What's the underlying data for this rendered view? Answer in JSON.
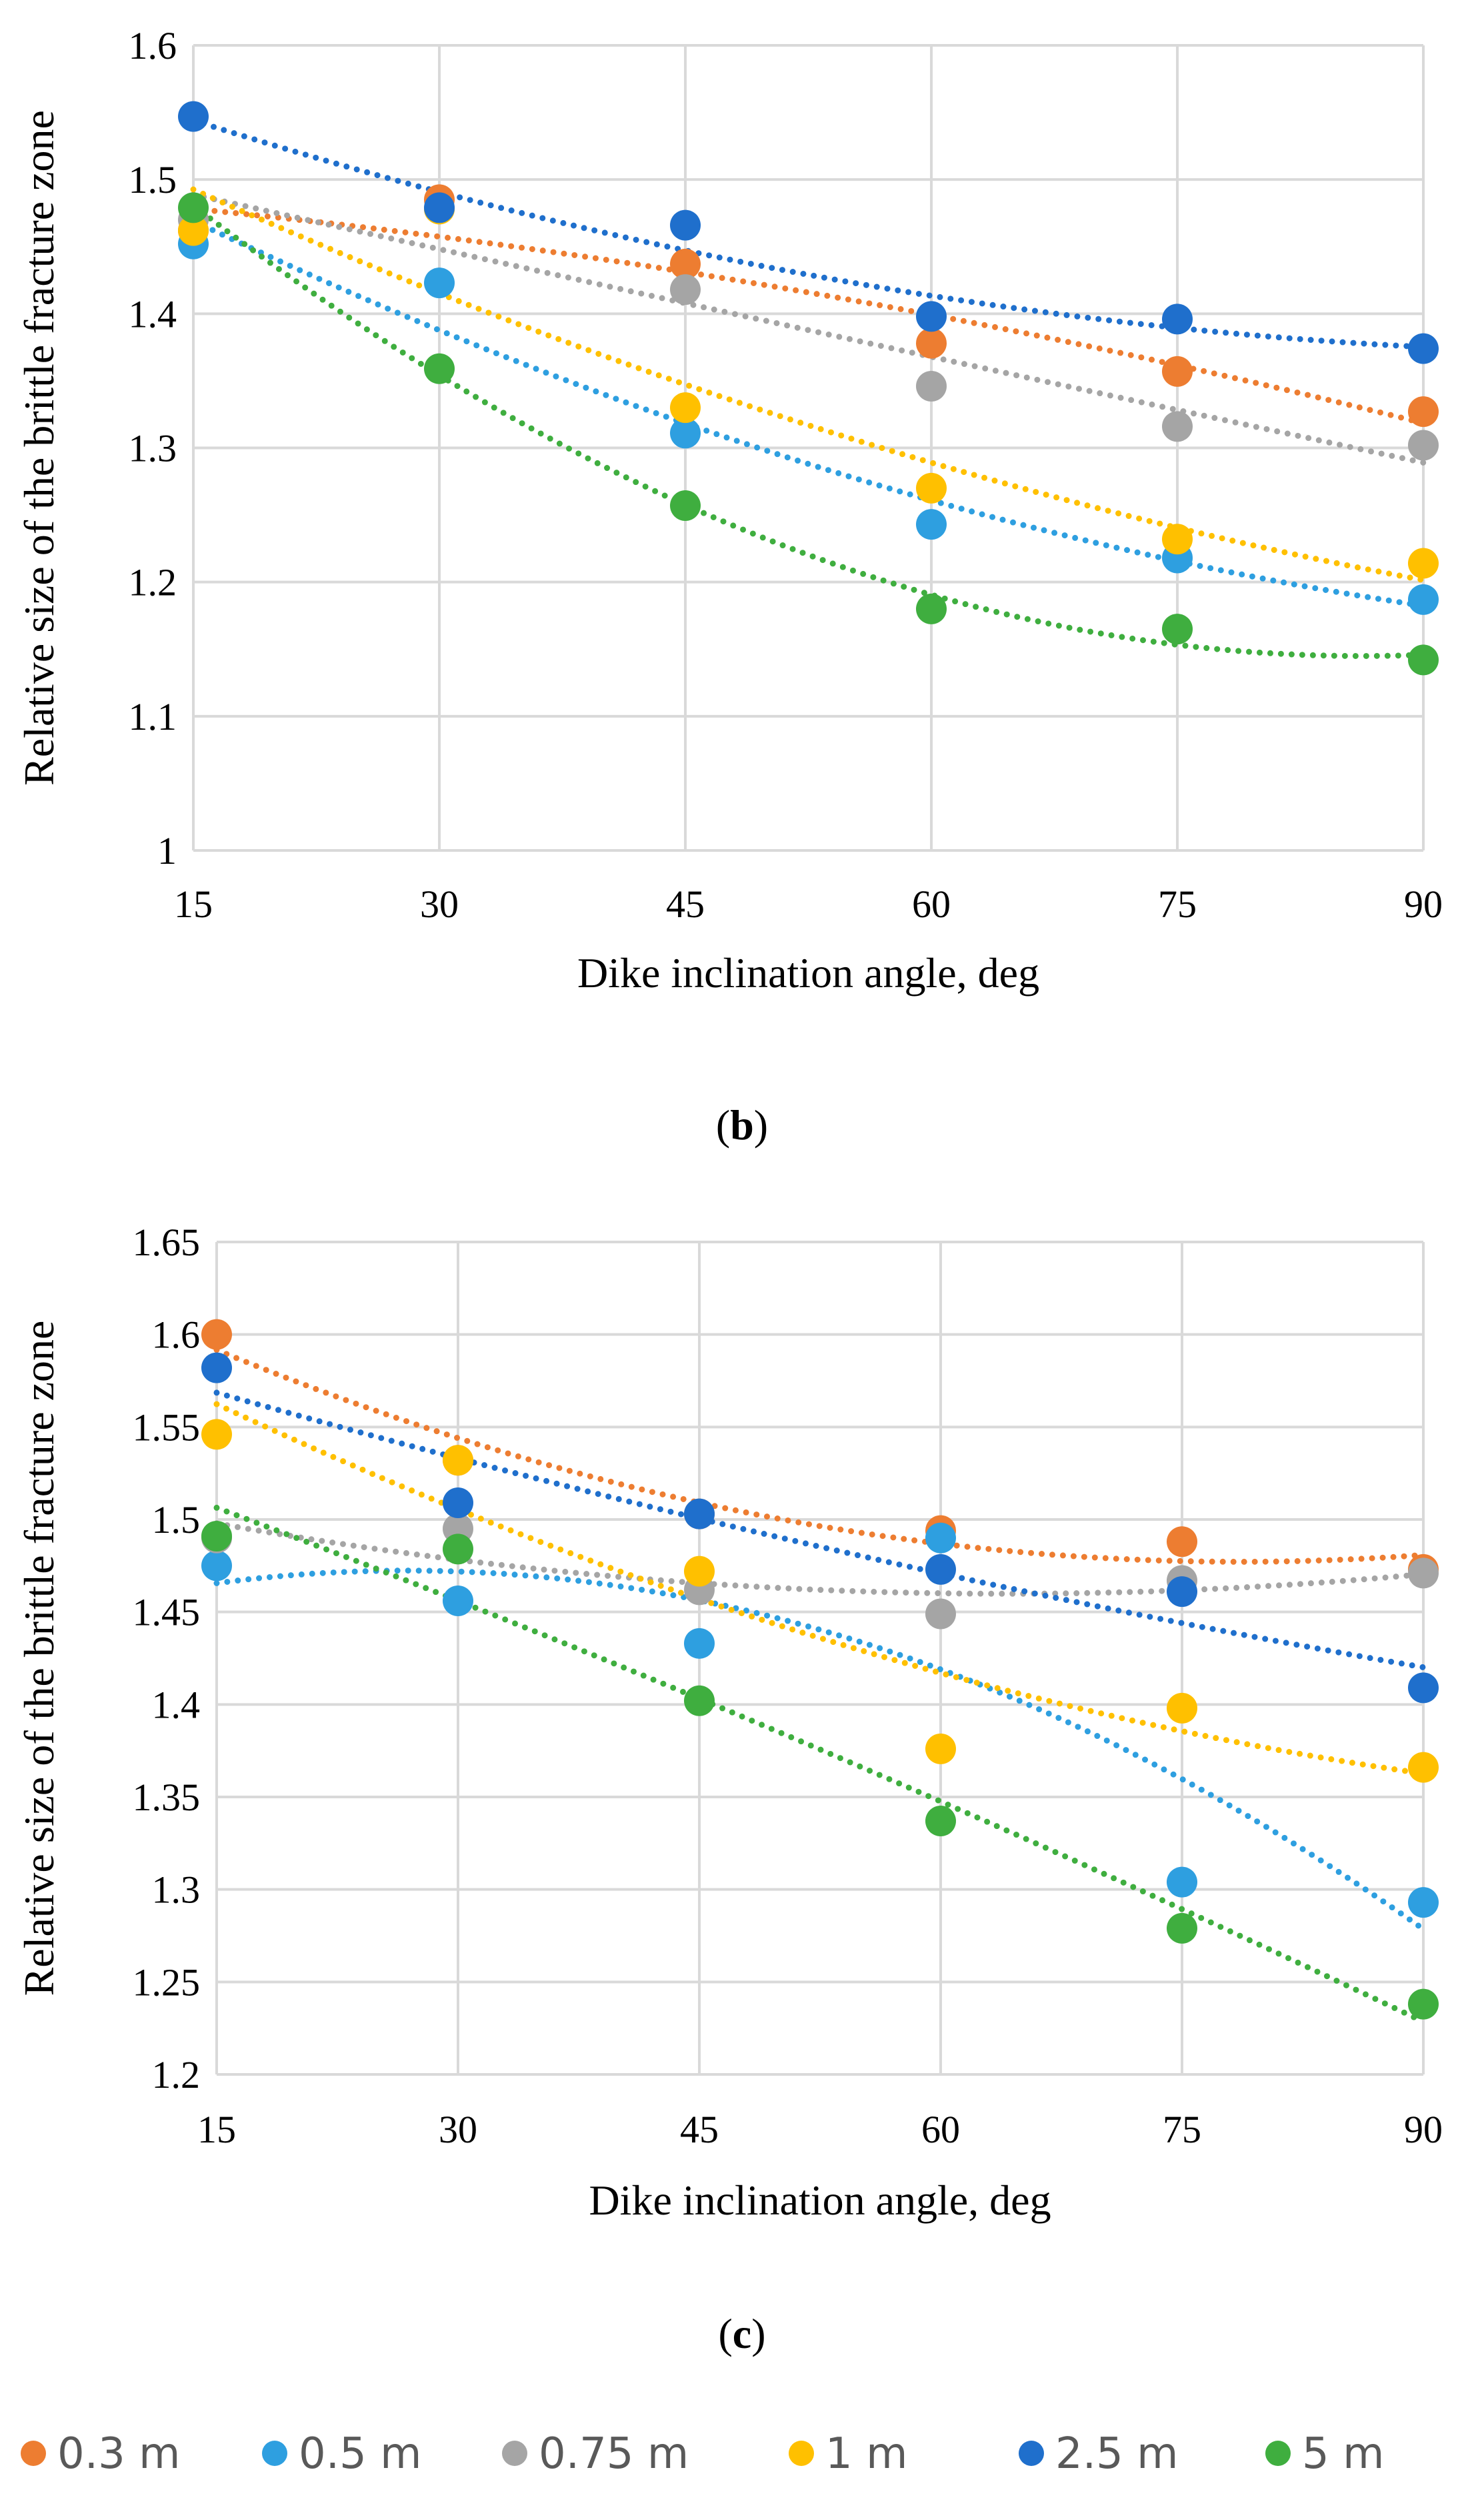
{
  "series_styles": [
    {
      "name": "0.3 m",
      "color": "#ED7D31"
    },
    {
      "name": "0.5 m",
      "color": "#2E9FE0"
    },
    {
      "name": "0.75 m",
      "color": "#A5A5A5"
    },
    {
      "name": "1 m",
      "color": "#FFC000"
    },
    {
      "name": "2.5 m",
      "color": "#1F6FCC"
    },
    {
      "name": "5 m",
      "color": "#3FAE3F"
    }
  ],
  "legend": {
    "items": [
      "0.3 m",
      "0.5 m",
      "0.75 m",
      "1 m",
      "2.5 m",
      "5 m"
    ],
    "position": "bottom"
  },
  "chart_data": [
    {
      "type": "scatter",
      "caption_letter": "b",
      "caption_open": "(",
      "caption_close": ")",
      "xlabel": "Dike inclination angle, deg",
      "ylabel": "Relative size of the brittle fracture zone",
      "x": [
        15,
        30,
        45,
        60,
        75,
        90
      ],
      "xlim": [
        15,
        90
      ],
      "ylim": [
        1.0,
        1.6
      ],
      "yticks": [
        1,
        1.1,
        1.2,
        1.3,
        1.4,
        1.5,
        1.6
      ],
      "ytick_labels": [
        "1",
        "1.1",
        "1.2",
        "1.3",
        "1.4",
        "1.5",
        "1.6"
      ],
      "xtick_labels": [
        "15",
        "30",
        "45",
        "60",
        "75",
        "90"
      ],
      "grid": true,
      "trendline": "polynomial, dotted",
      "series": [
        {
          "name": "0.3 m",
          "values": [
            1.462,
            1.485,
            1.437,
            1.378,
            1.357,
            1.327
          ]
        },
        {
          "name": "0.5 m",
          "values": [
            1.452,
            1.423,
            1.311,
            1.243,
            1.218,
            1.187
          ]
        },
        {
          "name": "0.75 m",
          "values": [
            1.47,
            1.478,
            1.418,
            1.346,
            1.316,
            1.302
          ]
        },
        {
          "name": "1 m",
          "values": [
            1.462,
            1.478,
            1.33,
            1.27,
            1.232,
            1.214
          ]
        },
        {
          "name": "2.5 m",
          "values": [
            1.547,
            1.479,
            1.466,
            1.398,
            1.396,
            1.374
          ]
        },
        {
          "name": "5 m",
          "values": [
            1.479,
            1.359,
            1.257,
            1.18,
            1.165,
            1.142
          ]
        }
      ]
    },
    {
      "type": "scatter",
      "caption_letter": "c",
      "caption_open": "(",
      "caption_close": ")",
      "xlabel": "Dike inclination angle, deg",
      "ylabel": "Relative size of the brittle fracture zone",
      "x": [
        15,
        30,
        45,
        60,
        75,
        90
      ],
      "xlim": [
        15,
        90
      ],
      "ylim": [
        1.2,
        1.65
      ],
      "yticks": [
        1.2,
        1.25,
        1.3,
        1.35,
        1.4,
        1.45,
        1.5,
        1.55,
        1.6,
        1.65
      ],
      "ytick_labels": [
        "1.2",
        "1.25",
        "1.3",
        "1.35",
        "1.4",
        "1.45",
        "1.5",
        "1.55",
        "1.6",
        "1.65"
      ],
      "xtick_labels": [
        "15",
        "30",
        "45",
        "60",
        "75",
        "90"
      ],
      "grid": true,
      "trendline": "polynomial, dotted",
      "series": [
        {
          "name": "0.3 m",
          "values": [
            1.6,
            1.532,
            1.503,
            1.494,
            1.488,
            1.473
          ]
        },
        {
          "name": "0.5 m",
          "values": [
            1.475,
            1.456,
            1.433,
            1.49,
            1.304,
            1.293
          ]
        },
        {
          "name": "0.75 m",
          "values": [
            1.49,
            1.495,
            1.462,
            1.449,
            1.467,
            1.471
          ]
        },
        {
          "name": "1 m",
          "values": [
            1.546,
            1.532,
            1.472,
            1.376,
            1.398,
            1.366
          ]
        },
        {
          "name": "2.5 m",
          "values": [
            1.582,
            1.509,
            1.503,
            1.473,
            1.461,
            1.409
          ]
        },
        {
          "name": "5 m",
          "values": [
            1.491,
            1.484,
            1.402,
            1.337,
            1.279,
            1.238
          ]
        }
      ]
    }
  ]
}
